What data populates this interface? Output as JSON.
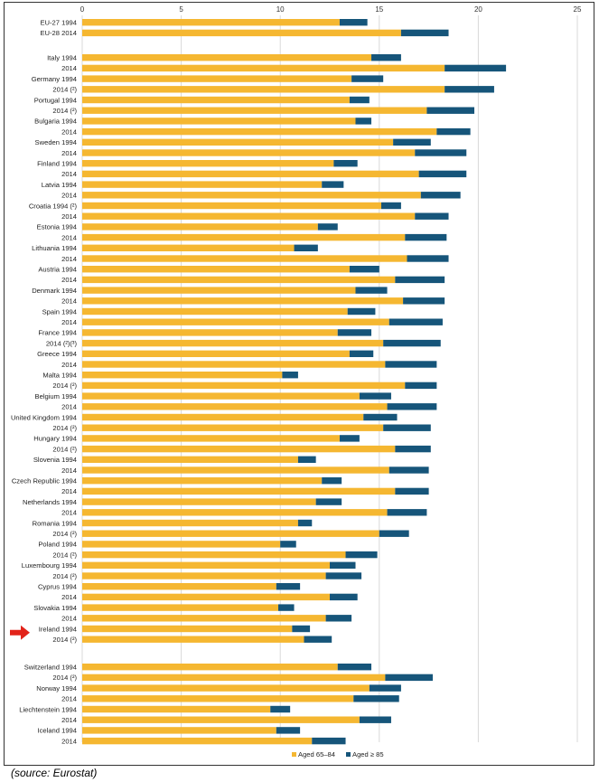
{
  "chart_data": {
    "type": "bar",
    "orientation": "horizontal",
    "stacked": true,
    "xlim": [
      0,
      25
    ],
    "x_ticks": [
      "0",
      "5",
      "10",
      "15",
      "20",
      "25"
    ],
    "grid": true,
    "legend_position": "bottom-right",
    "colors": {
      "aged_65_84": "#f5b731",
      "aged_85_plus": "#16557a",
      "grid": "#d9d9d9",
      "marker": "#e2231a"
    },
    "series": [
      {
        "name": "Aged 65–84"
      },
      {
        "name": "Aged ≥ 85"
      }
    ],
    "highlight_country": "Ireland",
    "groups": [
      {
        "country": "EU-27/28",
        "rows": [
          {
            "label": "EU-27 1994",
            "values": [
              13.0,
              1.4
            ]
          },
          {
            "label": "EU-28 2014",
            "values": [
              16.1,
              2.4
            ]
          }
        ]
      },
      {
        "country": "Italy",
        "rows": [
          {
            "label": "Italy 1994",
            "values": [
              14.6,
              1.5
            ]
          },
          {
            "label": "2014",
            "values": [
              18.3,
              3.1
            ]
          }
        ]
      },
      {
        "country": "Germany",
        "rows": [
          {
            "label": "Germany 1994",
            "values": [
              13.6,
              1.6
            ]
          },
          {
            "label": "2014 (²)",
            "values": [
              18.3,
              2.5
            ]
          }
        ]
      },
      {
        "country": "Portugal",
        "rows": [
          {
            "label": "Portugal 1994",
            "values": [
              13.5,
              1.0
            ]
          },
          {
            "label": "2014 (²)",
            "values": [
              17.4,
              2.4
            ]
          }
        ]
      },
      {
        "country": "Bulgaria",
        "rows": [
          {
            "label": "Bulgaria 1994",
            "values": [
              13.8,
              0.8
            ]
          },
          {
            "label": "2014",
            "values": [
              17.9,
              1.7
            ]
          }
        ]
      },
      {
        "country": "Sweden",
        "rows": [
          {
            "label": "Sweden 1994",
            "values": [
              15.7,
              1.9
            ]
          },
          {
            "label": "2014",
            "values": [
              16.8,
              2.6
            ]
          }
        ]
      },
      {
        "country": "Finland",
        "rows": [
          {
            "label": "Finland 1994",
            "values": [
              12.7,
              1.2
            ]
          },
          {
            "label": "2014",
            "values": [
              17.0,
              2.4
            ]
          }
        ]
      },
      {
        "country": "Latvia",
        "rows": [
          {
            "label": "Latvia 1994",
            "values": [
              12.1,
              1.1
            ]
          },
          {
            "label": "2014",
            "values": [
              17.1,
              2.0
            ]
          }
        ]
      },
      {
        "country": "Croatia",
        "rows": [
          {
            "label": "Croatia 1994 (²)",
            "values": [
              15.1,
              1.0
            ]
          },
          {
            "label": "2014",
            "values": [
              16.8,
              1.7
            ]
          }
        ]
      },
      {
        "country": "Estonia",
        "rows": [
          {
            "label": "Estonia 1994",
            "values": [
              11.9,
              1.0
            ]
          },
          {
            "label": "2014",
            "values": [
              16.3,
              2.1
            ]
          }
        ]
      },
      {
        "country": "Lithuania",
        "rows": [
          {
            "label": "Lithuania 1994",
            "values": [
              10.7,
              1.2
            ]
          },
          {
            "label": "2014",
            "values": [
              16.4,
              2.1
            ]
          }
        ]
      },
      {
        "country": "Austria",
        "rows": [
          {
            "label": "Austria 1994",
            "values": [
              13.5,
              1.5
            ]
          },
          {
            "label": "2014",
            "values": [
              15.8,
              2.5
            ]
          }
        ]
      },
      {
        "country": "Denmark",
        "rows": [
          {
            "label": "Denmark 1994",
            "values": [
              13.8,
              1.6
            ]
          },
          {
            "label": "2014",
            "values": [
              16.2,
              2.1
            ]
          }
        ]
      },
      {
        "country": "Spain",
        "rows": [
          {
            "label": "Spain 1994",
            "values": [
              13.4,
              1.4
            ]
          },
          {
            "label": "2014",
            "values": [
              15.5,
              2.7
            ]
          }
        ]
      },
      {
        "country": "France",
        "rows": [
          {
            "label": "France 1994",
            "values": [
              12.9,
              1.7
            ]
          },
          {
            "label": "2014 (²)(³)",
            "values": [
              15.2,
              2.9
            ]
          }
        ]
      },
      {
        "country": "Greece",
        "rows": [
          {
            "label": "Greece 1994",
            "values": [
              13.5,
              1.2
            ]
          },
          {
            "label": "2014",
            "values": [
              15.3,
              2.6
            ]
          }
        ]
      },
      {
        "country": "Malta",
        "rows": [
          {
            "label": "Malta 1994",
            "values": [
              10.1,
              0.8
            ]
          },
          {
            "label": "2014 (²)",
            "values": [
              16.3,
              1.6
            ]
          }
        ]
      },
      {
        "country": "Belgium",
        "rows": [
          {
            "label": "Belgium 1994",
            "values": [
              14.0,
              1.6
            ]
          },
          {
            "label": "2014",
            "values": [
              15.4,
              2.5
            ]
          }
        ]
      },
      {
        "country": "United Kingdom",
        "rows": [
          {
            "label": "United Kingdom 1994",
            "values": [
              14.2,
              1.7
            ]
          },
          {
            "label": "2014 (²)",
            "values": [
              15.2,
              2.4
            ]
          }
        ]
      },
      {
        "country": "Hungary",
        "rows": [
          {
            "label": "Hungary 1994",
            "values": [
              13.0,
              1.0
            ]
          },
          {
            "label": "2014 (²)",
            "values": [
              15.8,
              1.8
            ]
          }
        ]
      },
      {
        "country": "Slovenia",
        "rows": [
          {
            "label": "Slovenia 1994",
            "values": [
              10.9,
              0.9
            ]
          },
          {
            "label": "2014",
            "values": [
              15.5,
              2.0
            ]
          }
        ]
      },
      {
        "country": "Czech Republic",
        "rows": [
          {
            "label": "Czech Republic 1994",
            "values": [
              12.1,
              1.0
            ]
          },
          {
            "label": "2014",
            "values": [
              15.8,
              1.7
            ]
          }
        ]
      },
      {
        "country": "Netherlands",
        "rows": [
          {
            "label": "Netherlands 1994",
            "values": [
              11.8,
              1.3
            ]
          },
          {
            "label": "2014",
            "values": [
              15.4,
              2.0
            ]
          }
        ]
      },
      {
        "country": "Romania",
        "rows": [
          {
            "label": "Romania 1994",
            "values": [
              10.9,
              0.7
            ]
          },
          {
            "label": "2014 (²)",
            "values": [
              15.0,
              1.5
            ]
          }
        ]
      },
      {
        "country": "Poland",
        "rows": [
          {
            "label": "Poland 1994",
            "values": [
              10.0,
              0.8
            ]
          },
          {
            "label": "2014 (²)",
            "values": [
              13.3,
              1.6
            ]
          }
        ]
      },
      {
        "country": "Luxembourg",
        "rows": [
          {
            "label": "Luxembourg 1994",
            "values": [
              12.5,
              1.3
            ]
          },
          {
            "label": "2014 (²)",
            "values": [
              12.3,
              1.8
            ]
          }
        ]
      },
      {
        "country": "Cyprus",
        "rows": [
          {
            "label": "Cyprus 1994",
            "values": [
              9.8,
              1.2
            ]
          },
          {
            "label": "2014",
            "values": [
              12.5,
              1.4
            ]
          }
        ]
      },
      {
        "country": "Slovakia",
        "rows": [
          {
            "label": "Slovakia 1994",
            "values": [
              9.9,
              0.8
            ]
          },
          {
            "label": "2014",
            "values": [
              12.3,
              1.3
            ]
          }
        ]
      },
      {
        "country": "Ireland",
        "rows": [
          {
            "label": "Ireland 1994",
            "values": [
              10.6,
              0.9
            ]
          },
          {
            "label": "2014 (²)",
            "values": [
              11.2,
              1.4
            ]
          }
        ]
      },
      {
        "country": "Switzerland",
        "rows": [
          {
            "label": "Switzerland 1994",
            "values": [
              12.9,
              1.7
            ]
          },
          {
            "label": "2014 (²)",
            "values": [
              15.3,
              2.4
            ]
          }
        ]
      },
      {
        "country": "Norway",
        "rows": [
          {
            "label": "Norway 1994",
            "values": [
              14.5,
              1.6
            ]
          },
          {
            "label": "2014",
            "values": [
              13.7,
              2.3
            ]
          }
        ]
      },
      {
        "country": "Liechtenstein",
        "rows": [
          {
            "label": "Liechtenstein 1994",
            "values": [
              9.5,
              1.0
            ]
          },
          {
            "label": "2014",
            "values": [
              14.0,
              1.6
            ]
          }
        ]
      },
      {
        "country": "Iceland",
        "rows": [
          {
            "label": "Iceland 1994",
            "values": [
              9.8,
              1.2
            ]
          },
          {
            "label": "2014",
            "values": [
              11.6,
              1.7
            ]
          }
        ]
      }
    ]
  },
  "source_text": "(source: Eurostat)"
}
